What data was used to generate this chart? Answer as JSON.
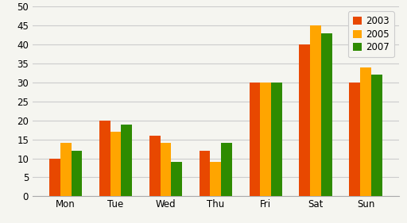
{
  "days": [
    "Mon",
    "Tue",
    "Wed",
    "Thu",
    "Fri",
    "Sat",
    "Sun"
  ],
  "series": {
    "2003": [
      10,
      20,
      16,
      12,
      30,
      40,
      30
    ],
    "2005": [
      14,
      17,
      14,
      9,
      30,
      45,
      34
    ],
    "2007": [
      12,
      19,
      9,
      14,
      30,
      43,
      32
    ]
  },
  "colors": {
    "2003": "#E84800",
    "2005": "#FFA500",
    "2007": "#2E8B00"
  },
  "ylim": [
    0,
    50
  ],
  "yticks": [
    0,
    5,
    10,
    15,
    20,
    25,
    30,
    35,
    40,
    45,
    50
  ],
  "legend_labels": [
    "2003",
    "2005",
    "2007"
  ],
  "background_color": "#f5f5f0",
  "plot_bg_color": "#f5f5f0",
  "grid_color": "#cccccc",
  "bar_width": 0.22
}
